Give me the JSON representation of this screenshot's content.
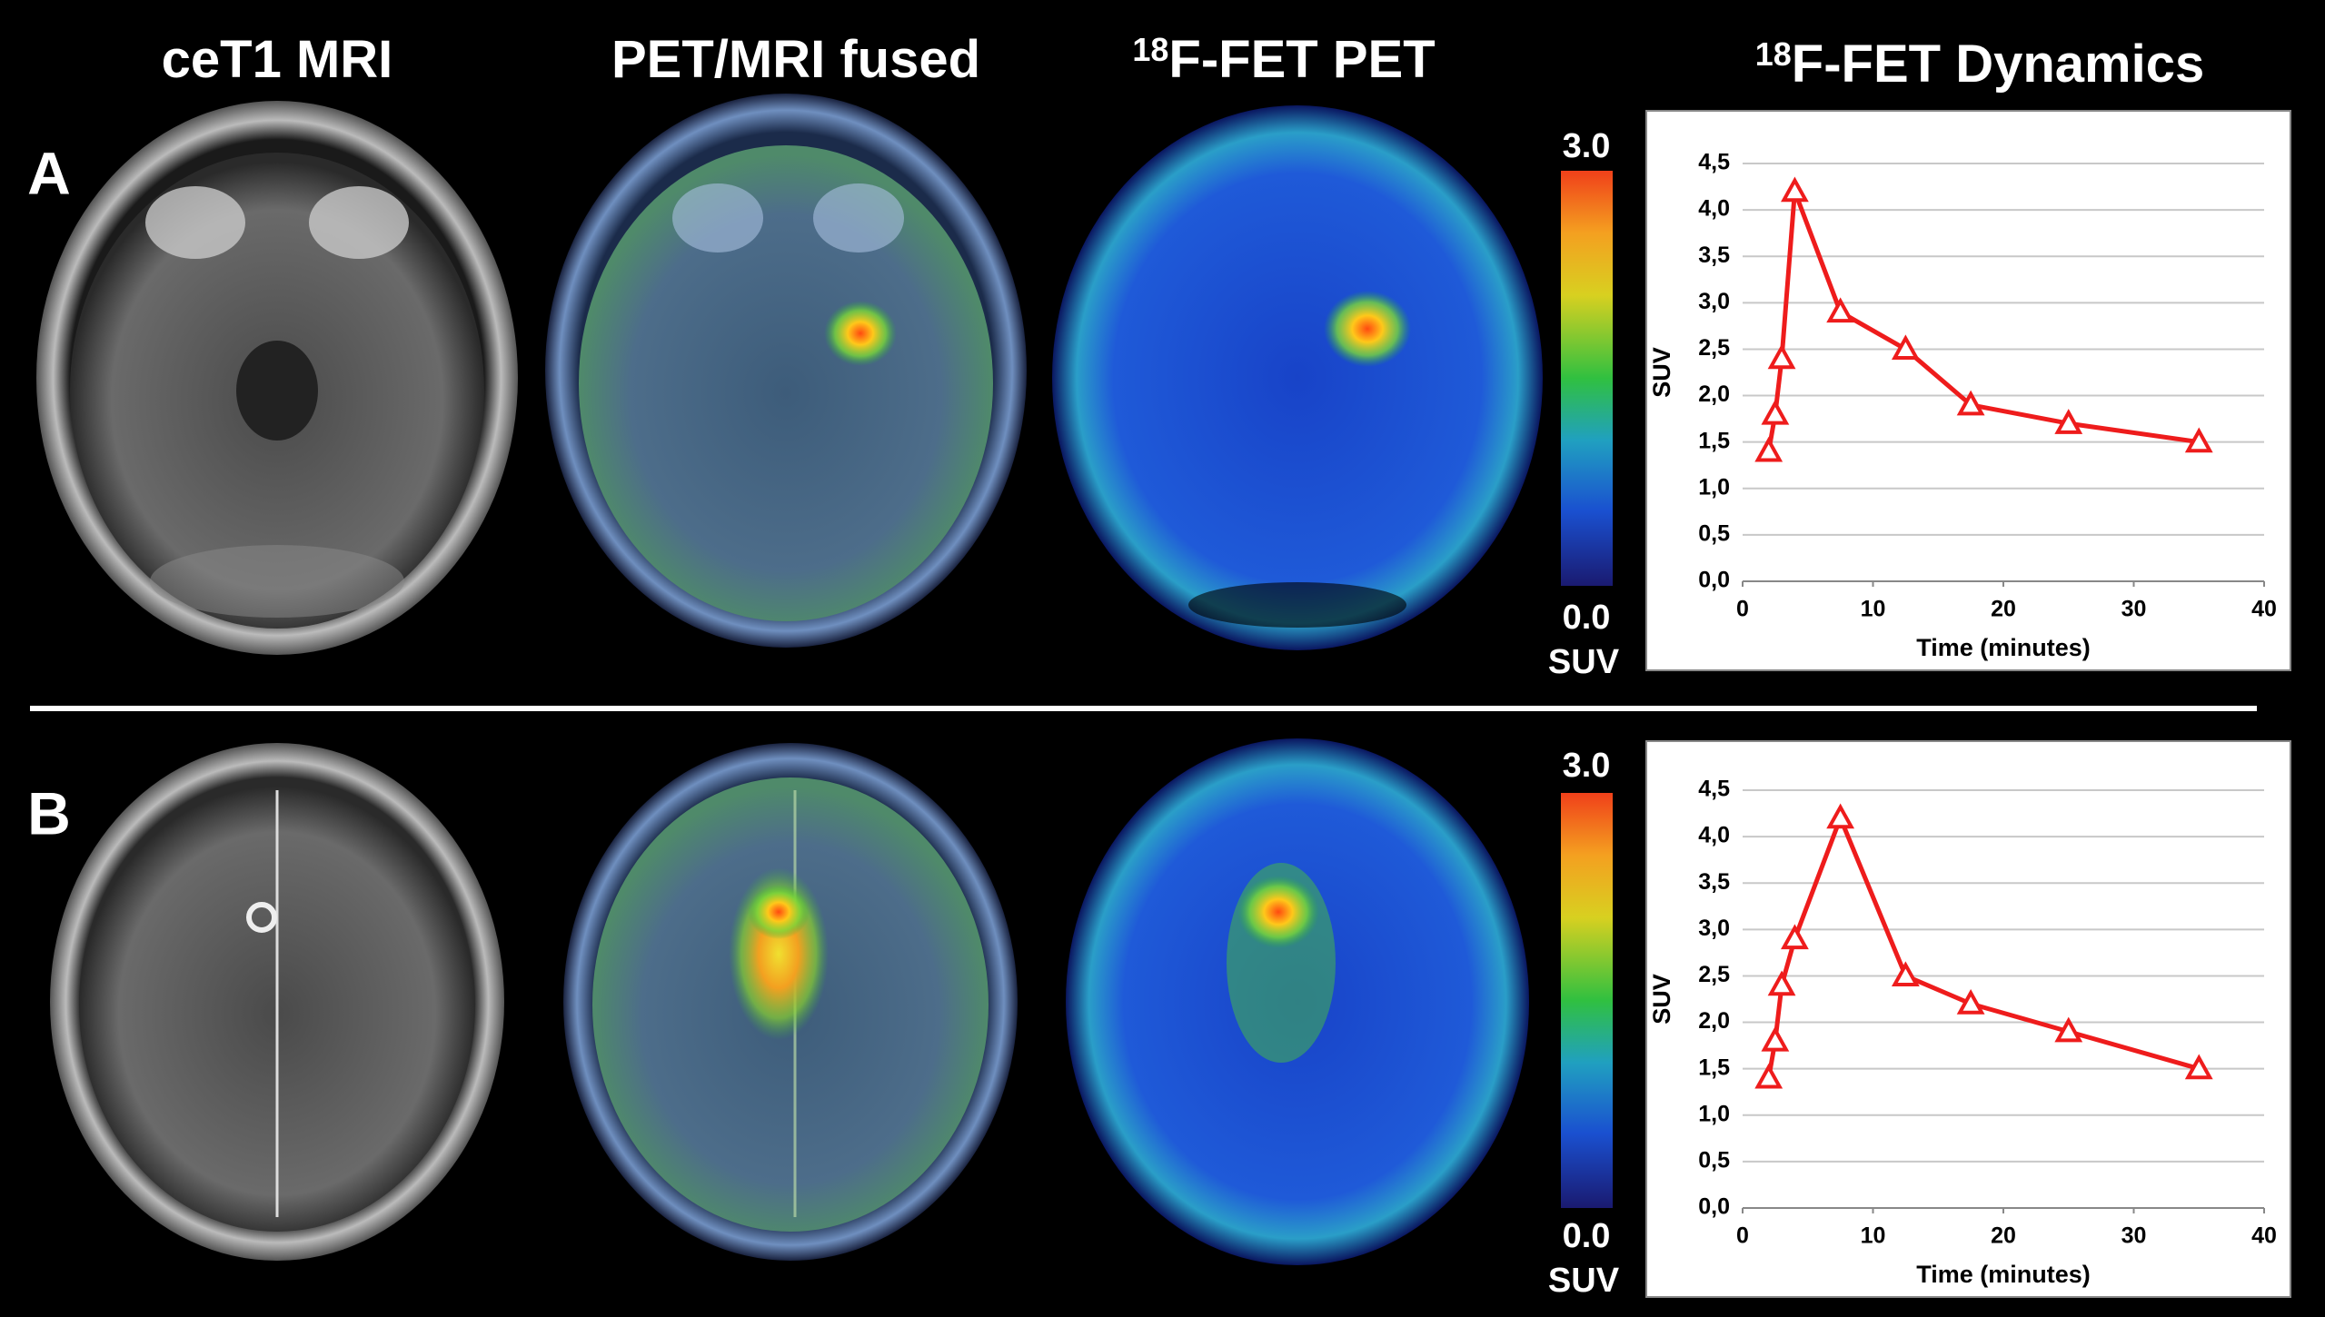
{
  "headers": [
    "ceT1 MRI",
    "PET/MRI fused",
    {
      "superscript": "18",
      "text": "F-FET PET"
    },
    {
      "superscript": "18",
      "text": "F-FET Dynamics"
    }
  ],
  "rows": [
    "A",
    "B"
  ],
  "colorbar": {
    "max_label": "3.0",
    "min_label": "0.0",
    "unit": "SUV"
  },
  "chart_data": [
    {
      "type": "line",
      "color": "#ee1c1c",
      "marker": "triangle",
      "x_label": "Time (minutes)",
      "y_label": "SUV",
      "x": [
        2,
        2.5,
        3,
        4,
        7.5,
        12.5,
        17.5,
        25,
        35
      ],
      "values": [
        1.4,
        1.8,
        2.4,
        4.2,
        2.9,
        2.5,
        1.9,
        1.7,
        1.5
      ],
      "xlim": [
        0,
        40
      ],
      "xticks": [
        0,
        10,
        20,
        30,
        40
      ],
      "ylim": [
        0,
        4.5
      ],
      "yticks": [
        {
          "value": 0,
          "label": "0,0"
        },
        {
          "value": 0.5,
          "label": "0,5"
        },
        {
          "value": 1,
          "label": "1,0"
        },
        {
          "value": 1.5,
          "label": "1,5"
        },
        {
          "value": 2,
          "label": "2,0"
        },
        {
          "value": 2.5,
          "label": "2,5"
        },
        {
          "value": 3,
          "label": "3,0"
        },
        {
          "value": 3.5,
          "label": "3,5"
        },
        {
          "value": 4,
          "label": "4,0"
        },
        {
          "value": 4.5,
          "label": "4,5"
        }
      ],
      "grid": true
    },
    {
      "type": "line",
      "color": "#ee1c1c",
      "marker": "triangle",
      "x_label": "Time (minutes)",
      "y_label": "SUV",
      "x": [
        2,
        2.5,
        3,
        4,
        7.5,
        12.5,
        17.5,
        25,
        35
      ],
      "values": [
        1.4,
        1.8,
        2.4,
        2.9,
        4.2,
        2.5,
        2.2,
        1.9,
        1.5
      ],
      "xlim": [
        0,
        40
      ],
      "xticks": [
        0,
        10,
        20,
        30,
        40
      ],
      "ylim": [
        0,
        4.5
      ],
      "yticks": [
        {
          "value": 0,
          "label": "0,0"
        },
        {
          "value": 0.5,
          "label": "0,5"
        },
        {
          "value": 1,
          "label": "1,0"
        },
        {
          "value": 1.5,
          "label": "1,5"
        },
        {
          "value": 2,
          "label": "2,0"
        },
        {
          "value": 2.5,
          "label": "2,5"
        },
        {
          "value": 3,
          "label": "3,0"
        },
        {
          "value": 3.5,
          "label": "3,5"
        },
        {
          "value": 4,
          "label": "4,0"
        },
        {
          "value": 4.5,
          "label": "4,5"
        }
      ],
      "grid": true
    }
  ]
}
